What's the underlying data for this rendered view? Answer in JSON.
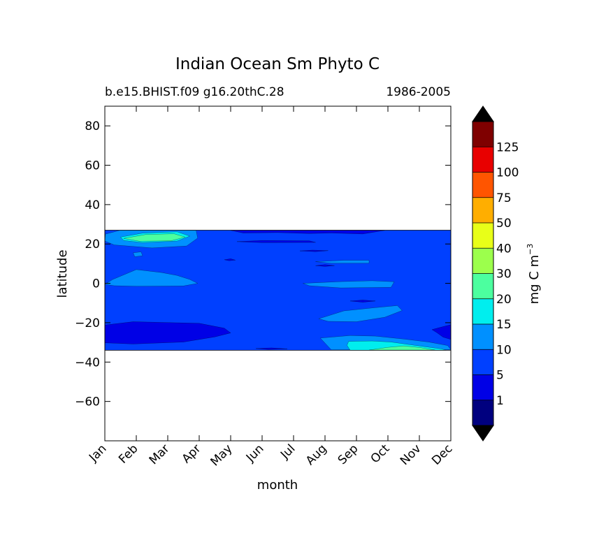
{
  "chart_data": {
    "type": "heatmap",
    "title": "Indian Ocean Sm Phyto C",
    "subtitle_left": "b.e15.BHIST.f09 g16.20thC.28",
    "subtitle_right": "1986-2005",
    "xlabel": "month",
    "ylabel": "latitude",
    "x_categories": [
      "Jan",
      "Feb",
      "Mar",
      "Apr",
      "May",
      "Jun",
      "Jul",
      "Aug",
      "Sep",
      "Oct",
      "Nov",
      "Dec"
    ],
    "x_range": [
      0,
      11
    ],
    "y_ticks": [
      80,
      60,
      40,
      20,
      0,
      -20,
      -40,
      -60
    ],
    "y_tick_labels": [
      "80",
      "60",
      "40",
      "20",
      "0",
      "−20",
      "−40",
      "−60"
    ],
    "ylim": [
      -80,
      90
    ],
    "data_lat_range": [
      -34,
      27
    ],
    "colorbar": {
      "label_prefix": "mg C m",
      "label_exponent": "−3",
      "levels": [
        1,
        5,
        10,
        15,
        20,
        30,
        40,
        50,
        75,
        100,
        125
      ],
      "level_labels": [
        "1",
        "5",
        "10",
        "15",
        "20",
        "30",
        "40",
        "50",
        "75",
        "100",
        "125"
      ],
      "colors": [
        "#00007f",
        "#0000e6",
        "#0040ff",
        "#0090ff",
        "#00eeee",
        "#4cff9f",
        "#9cff4c",
        "#e8ff18",
        "#ffae00",
        "#ff5500",
        "#e80000",
        "#7f0000"
      ],
      "extend": "both",
      "under_color": "#000000",
      "over_color": "#000000"
    },
    "background_level_color": "#0040ff",
    "regions": [
      {
        "level": "10-15",
        "color": "#0090ff",
        "points": [
          [
            0.02,
            25
          ],
          [
            0.5,
            27
          ],
          [
            2.9,
            27
          ],
          [
            2.95,
            23
          ],
          [
            2.6,
            19
          ],
          [
            1.5,
            18
          ],
          [
            0.3,
            19.5
          ],
          [
            0.0,
            21.5
          ]
        ]
      },
      {
        "level": "15-20",
        "color": "#00eeee",
        "points": [
          [
            0.5,
            23.5
          ],
          [
            1.2,
            25.5
          ],
          [
            2.3,
            26.2
          ],
          [
            2.7,
            24
          ],
          [
            2.3,
            21.5
          ],
          [
            1.2,
            20.7
          ],
          [
            0.6,
            21.8
          ]
        ]
      },
      {
        "level": "20-30",
        "color": "#4cff9f",
        "points": [
          [
            0.6,
            22.8
          ],
          [
            1.3,
            24.8
          ],
          [
            2.2,
            25.2
          ],
          [
            2.55,
            23.5
          ],
          [
            2.1,
            21.6
          ],
          [
            1.1,
            21.4
          ]
        ]
      },
      {
        "level": "10-15",
        "color": "#0090ff",
        "points": [
          [
            0.9,
            15.5
          ],
          [
            1.15,
            16
          ],
          [
            1.2,
            14
          ],
          [
            0.95,
            13.5
          ]
        ]
      },
      {
        "level": "10-15",
        "color": "#0090ff",
        "points": [
          [
            0.0,
            -0.5
          ],
          [
            0.25,
            2
          ],
          [
            1.0,
            7
          ],
          [
            1.8,
            5.5
          ],
          [
            2.3,
            4
          ],
          [
            2.7,
            2
          ],
          [
            2.95,
            0
          ],
          [
            2.5,
            -1.3
          ],
          [
            1.0,
            -1.5
          ],
          [
            0.3,
            -1.2
          ]
        ]
      },
      {
        "level": "10-15",
        "color": "#0090ff",
        "points": [
          [
            6.3,
            0
          ],
          [
            7.5,
            0.9
          ],
          [
            8.5,
            1.3
          ],
          [
            9.2,
            0.8
          ],
          [
            9.1,
            -2.0
          ],
          [
            7.5,
            -2.3
          ],
          [
            6.5,
            -1.2
          ]
        ]
      },
      {
        "level": "10-15",
        "color": "#0090ff",
        "points": [
          [
            6.7,
            11
          ],
          [
            7.6,
            11.7
          ],
          [
            8.4,
            11.7
          ],
          [
            8.4,
            10.2
          ],
          [
            7.2,
            10.2
          ]
        ]
      },
      {
        "level": "10-15",
        "color": "#0090ff",
        "points": [
          [
            6.8,
            -18
          ],
          [
            7.6,
            -14
          ],
          [
            8.5,
            -12.5
          ],
          [
            9.3,
            -11.3
          ],
          [
            9.45,
            -13.8
          ],
          [
            8.9,
            -17.2
          ],
          [
            8.0,
            -19.5
          ],
          [
            7.1,
            -19.3
          ]
        ]
      },
      {
        "level": "10-15",
        "color": "#0090ff",
        "points": [
          [
            6.85,
            -27.8
          ],
          [
            7.8,
            -26.5
          ],
          [
            8.6,
            -26.8
          ],
          [
            9.5,
            -28.3
          ],
          [
            10.3,
            -29.8
          ],
          [
            10.9,
            -31.6
          ],
          [
            11.0,
            -33.7
          ],
          [
            7.2,
            -33.8
          ]
        ]
      },
      {
        "level": "15-20",
        "color": "#00eeee",
        "points": [
          [
            7.75,
            -29.5
          ],
          [
            8.5,
            -29.3
          ],
          [
            9.1,
            -29.8
          ],
          [
            10.0,
            -31.8
          ],
          [
            10.7,
            -33.3
          ],
          [
            10.85,
            -34
          ],
          [
            7.8,
            -34
          ],
          [
            7.7,
            -31.5
          ]
        ]
      },
      {
        "level": "20-30",
        "color": "#4cff9f",
        "points": [
          [
            8.4,
            -33.9
          ],
          [
            9.0,
            -32.5
          ],
          [
            9.5,
            -31.8
          ],
          [
            10.0,
            -32.6
          ],
          [
            10.5,
            -33.9
          ]
        ]
      },
      {
        "level": "5-10",
        "color": "#0000e6",
        "points": [
          [
            4.0,
            26.9
          ],
          [
            4.4,
            25.6
          ],
          [
            5.5,
            25.8
          ],
          [
            6.5,
            25.3
          ],
          [
            7.2,
            25.6
          ],
          [
            8.2,
            25.1
          ],
          [
            8.9,
            26.9
          ]
        ]
      },
      {
        "level": "5-10",
        "color": "#0000e6",
        "points": [
          [
            4.2,
            21.2
          ],
          [
            5.0,
            21.8
          ],
          [
            6.5,
            21.6
          ],
          [
            6.7,
            20.8
          ],
          [
            5.0,
            20.7
          ]
        ]
      },
      {
        "level": "5-10",
        "color": "#0000e6",
        "points": [
          [
            6.2,
            16.5
          ],
          [
            6.6,
            16.9
          ],
          [
            7.1,
            16.6
          ],
          [
            6.7,
            16.1
          ]
        ]
      },
      {
        "level": "5-10",
        "color": "#0000e6",
        "points": [
          [
            6.7,
            9
          ],
          [
            7.0,
            9.5
          ],
          [
            7.3,
            9
          ],
          [
            7.0,
            8.6
          ]
        ]
      },
      {
        "level": "5-10",
        "color": "#0000e6",
        "points": [
          [
            3.8,
            12
          ],
          [
            4.0,
            12.5
          ],
          [
            4.15,
            11.8
          ],
          [
            3.95,
            11.5
          ]
        ]
      },
      {
        "level": "5-10",
        "color": "#0000e6",
        "points": [
          [
            7.8,
            -9
          ],
          [
            8.2,
            -8.5
          ],
          [
            8.6,
            -9
          ],
          [
            8.2,
            -9.6
          ]
        ]
      },
      {
        "level": "5-10",
        "color": "#0000e6",
        "points": [
          [
            0.0,
            -21.2
          ],
          [
            0.9,
            -19.5
          ],
          [
            3.0,
            -20.3
          ],
          [
            3.8,
            -22.8
          ],
          [
            4.0,
            -25.2
          ],
          [
            3.5,
            -27.2
          ],
          [
            2.5,
            -29.8
          ],
          [
            0.9,
            -30.8
          ],
          [
            0.0,
            -30.2
          ]
        ]
      },
      {
        "level": "5-10",
        "color": "#0000e6",
        "points": [
          [
            4.8,
            -33.1
          ],
          [
            5.3,
            -32.8
          ],
          [
            5.8,
            -33.3
          ],
          [
            5.2,
            -33.6
          ]
        ]
      },
      {
        "level": "5-10",
        "color": "#0000e6",
        "points": [
          [
            10.4,
            -23.5
          ],
          [
            10.8,
            -21.8
          ],
          [
            11.0,
            -21.0
          ],
          [
            11.0,
            -28.5
          ],
          [
            10.75,
            -27.3
          ],
          [
            10.55,
            -25
          ]
        ]
      }
    ]
  }
}
